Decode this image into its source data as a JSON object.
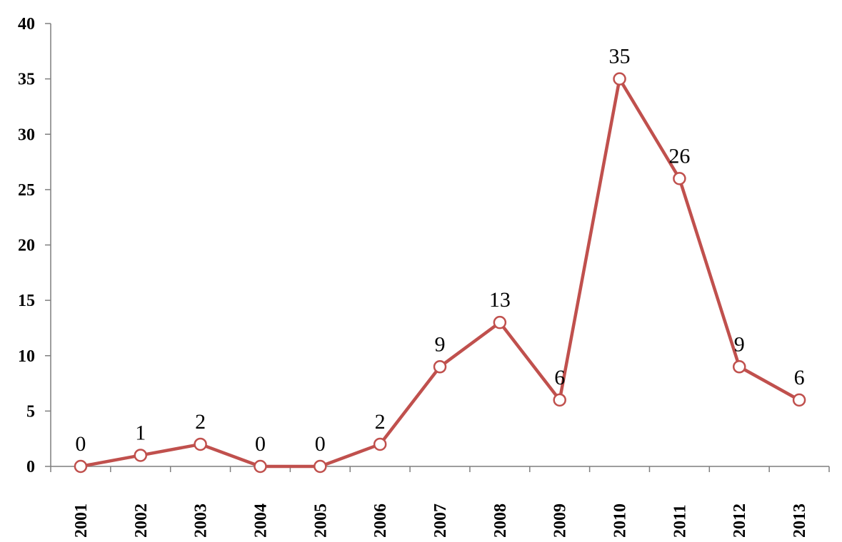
{
  "chart_data": {
    "type": "line",
    "categories": [
      "2001",
      "2002",
      "2003",
      "2004",
      "2005",
      "2006",
      "2007",
      "2008",
      "2009",
      "2010",
      "2011",
      "2012",
      "2013"
    ],
    "series": [
      {
        "values": [
          0,
          1,
          2,
          0,
          0,
          2,
          9,
          13,
          6,
          35,
          26,
          9,
          6
        ]
      }
    ],
    "data_labels": [
      "0",
      "1",
      "2",
      "0",
      "0",
      "2",
      "9",
      "13",
      "6",
      "35",
      "26",
      "9",
      "6"
    ],
    "y_ticks": [
      "0",
      "5",
      "10",
      "15",
      "20",
      "25",
      "30",
      "35",
      "40"
    ],
    "ylim": [
      0,
      40
    ],
    "title": "",
    "xlabel": "",
    "ylabel": "",
    "grid": false,
    "legend": "none",
    "colors": {
      "series": "#c0504d",
      "axis": "#7f7f7f"
    }
  }
}
